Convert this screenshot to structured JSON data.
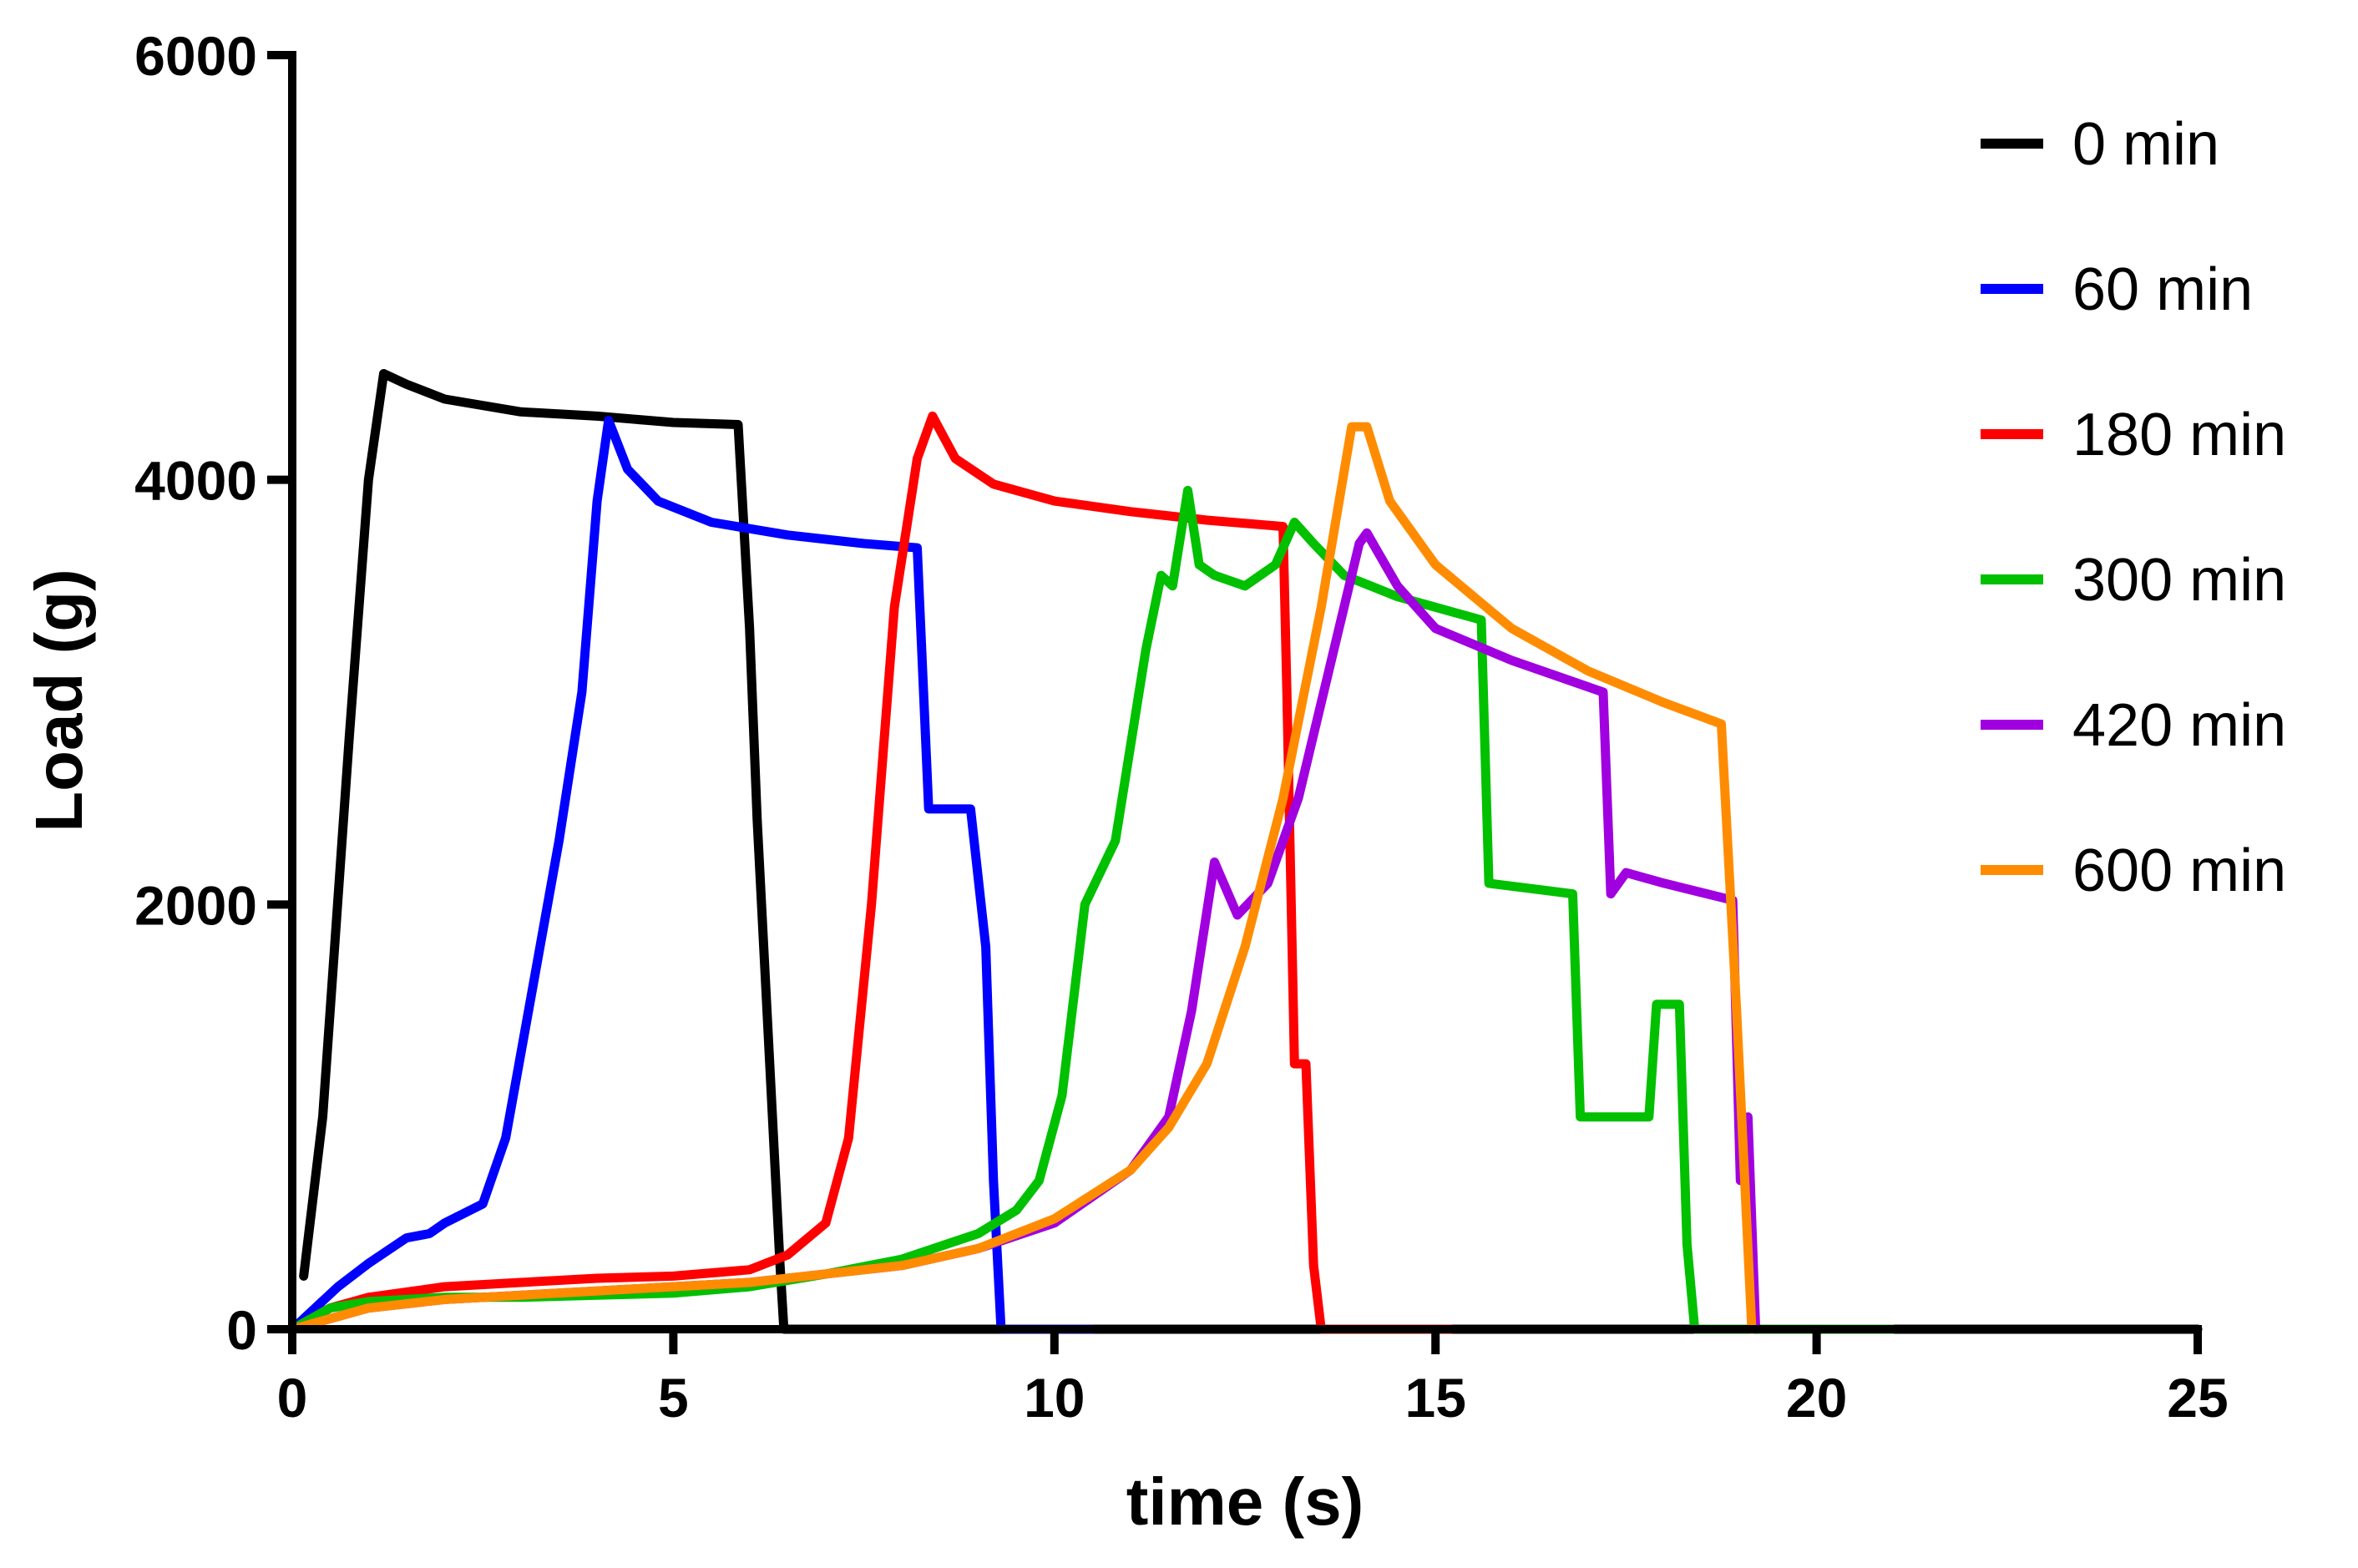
{
  "chart_data": {
    "type": "line",
    "title": "",
    "xlabel": "time (s)",
    "ylabel": "Load (g)",
    "xlim": [
      0,
      25
    ],
    "ylim": [
      0,
      6000
    ],
    "xticks": [
      0,
      5,
      10,
      15,
      20,
      25
    ],
    "xtick_labels": [
      "0",
      "5",
      "10",
      "15",
      "20",
      "25"
    ],
    "yticks": [
      0,
      2000,
      4000,
      6000
    ],
    "ytick_labels": [
      "0",
      "2000",
      "4000",
      "6000"
    ],
    "legend_position": "right",
    "series": [
      {
        "name": "0 min",
        "color": "#000000",
        "points": [
          [
            0.15,
            250
          ],
          [
            0.4,
            1000
          ],
          [
            0.75,
            2800
          ],
          [
            1.0,
            4000
          ],
          [
            1.2,
            4500
          ],
          [
            1.5,
            4450
          ],
          [
            2.0,
            4380
          ],
          [
            3.0,
            4320
          ],
          [
            4.0,
            4300
          ],
          [
            5.0,
            4270
          ],
          [
            5.85,
            4260
          ],
          [
            6.0,
            3300
          ],
          [
            6.1,
            2400
          ],
          [
            6.3,
            1000
          ],
          [
            6.4,
            300
          ],
          [
            6.45,
            0
          ],
          [
            10,
            0
          ],
          [
            20,
            0
          ],
          [
            25,
            0
          ]
        ]
      },
      {
        "name": "60 min",
        "color": "#0000ff",
        "points": [
          [
            0,
            0
          ],
          [
            0.3,
            100
          ],
          [
            0.6,
            200
          ],
          [
            1.0,
            310
          ],
          [
            1.5,
            430
          ],
          [
            1.8,
            450
          ],
          [
            2.0,
            500
          ],
          [
            2.5,
            590
          ],
          [
            2.8,
            900
          ],
          [
            3.1,
            1500
          ],
          [
            3.5,
            2300
          ],
          [
            3.8,
            3000
          ],
          [
            4.0,
            3900
          ],
          [
            4.15,
            4280
          ],
          [
            4.4,
            4050
          ],
          [
            4.8,
            3900
          ],
          [
            5.5,
            3800
          ],
          [
            6.5,
            3740
          ],
          [
            7.5,
            3700
          ],
          [
            8.2,
            3680
          ],
          [
            8.35,
            2450
          ],
          [
            8.9,
            2450
          ],
          [
            9.1,
            1800
          ],
          [
            9.2,
            700
          ],
          [
            9.3,
            0
          ],
          [
            10.5,
            0
          ]
        ]
      },
      {
        "name": "180 min",
        "color": "#ff0000",
        "points": [
          [
            0,
            0
          ],
          [
            0.5,
            100
          ],
          [
            1.0,
            150
          ],
          [
            2.0,
            200
          ],
          [
            3.0,
            220
          ],
          [
            4.0,
            240
          ],
          [
            5.0,
            250
          ],
          [
            6.0,
            280
          ],
          [
            6.5,
            350
          ],
          [
            7.0,
            500
          ],
          [
            7.3,
            900
          ],
          [
            7.6,
            2000
          ],
          [
            7.9,
            3400
          ],
          [
            8.2,
            4100
          ],
          [
            8.4,
            4300
          ],
          [
            8.7,
            4100
          ],
          [
            9.2,
            3980
          ],
          [
            10,
            3900
          ],
          [
            11,
            3850
          ],
          [
            12,
            3810
          ],
          [
            13.0,
            3780
          ],
          [
            13.05,
            3000
          ],
          [
            13.15,
            1250
          ],
          [
            13.3,
            1250
          ],
          [
            13.4,
            300
          ],
          [
            13.5,
            0
          ],
          [
            15.2,
            0
          ]
        ]
      },
      {
        "name": "300 min",
        "color": "#00c000",
        "points": [
          [
            0,
            0
          ],
          [
            0.5,
            100
          ],
          [
            1.0,
            130
          ],
          [
            2.0,
            150
          ],
          [
            3.0,
            150
          ],
          [
            4.0,
            160
          ],
          [
            5.0,
            170
          ],
          [
            6.0,
            200
          ],
          [
            7.0,
            260
          ],
          [
            8.0,
            330
          ],
          [
            9.0,
            450
          ],
          [
            9.5,
            560
          ],
          [
            9.8,
            700
          ],
          [
            10.1,
            1100
          ],
          [
            10.4,
            2000
          ],
          [
            10.8,
            2300
          ],
          [
            11.2,
            3200
          ],
          [
            11.4,
            3550
          ],
          [
            11.55,
            3500
          ],
          [
            11.75,
            3950
          ],
          [
            11.9,
            3600
          ],
          [
            12.1,
            3550
          ],
          [
            12.5,
            3500
          ],
          [
            12.9,
            3600
          ],
          [
            13.15,
            3800
          ],
          [
            13.4,
            3700
          ],
          [
            13.8,
            3550
          ],
          [
            14.5,
            3450
          ],
          [
            15.0,
            3400
          ],
          [
            15.6,
            3340
          ],
          [
            15.7,
            2100
          ],
          [
            16.8,
            2050
          ],
          [
            16.9,
            1000
          ],
          [
            17.8,
            1000
          ],
          [
            17.9,
            1530
          ],
          [
            18.2,
            1530
          ],
          [
            18.3,
            400
          ],
          [
            18.4,
            0
          ],
          [
            21.0,
            0
          ]
        ]
      },
      {
        "name": "420 min",
        "color": "#a000e0",
        "points": [
          [
            0,
            0
          ],
          [
            1.0,
            100
          ],
          [
            2.0,
            140
          ],
          [
            4.0,
            180
          ],
          [
            6.0,
            220
          ],
          [
            8.0,
            300
          ],
          [
            9.0,
            380
          ],
          [
            10.0,
            500
          ],
          [
            11.0,
            750
          ],
          [
            11.5,
            1000
          ],
          [
            11.8,
            1500
          ],
          [
            12.1,
            2200
          ],
          [
            12.4,
            1950
          ],
          [
            12.8,
            2100
          ],
          [
            13.2,
            2500
          ],
          [
            13.6,
            3100
          ],
          [
            14.0,
            3700
          ],
          [
            14.1,
            3750
          ],
          [
            14.5,
            3500
          ],
          [
            15.0,
            3300
          ],
          [
            16.0,
            3150
          ],
          [
            17.2,
            3000
          ],
          [
            17.3,
            2050
          ],
          [
            17.5,
            2150
          ],
          [
            18.0,
            2100
          ],
          [
            18.9,
            2020
          ],
          [
            19.0,
            700
          ],
          [
            19.1,
            1000
          ],
          [
            19.2,
            0
          ]
        ]
      },
      {
        "name": "600 min",
        "color": "#ff8c00",
        "points": [
          [
            0,
            0
          ],
          [
            1.0,
            100
          ],
          [
            2.0,
            140
          ],
          [
            4.0,
            180
          ],
          [
            6.0,
            220
          ],
          [
            8.0,
            300
          ],
          [
            9.0,
            380
          ],
          [
            10.0,
            520
          ],
          [
            11.0,
            750
          ],
          [
            11.5,
            950
          ],
          [
            12.0,
            1250
          ],
          [
            12.5,
            1800
          ],
          [
            13.0,
            2500
          ],
          [
            13.5,
            3400
          ],
          [
            13.9,
            4250
          ],
          [
            14.1,
            4250
          ],
          [
            14.4,
            3900
          ],
          [
            15,
            3600
          ],
          [
            16,
            3300
          ],
          [
            17,
            3100
          ],
          [
            18,
            2950
          ],
          [
            18.75,
            2850
          ],
          [
            18.95,
            1500
          ],
          [
            19.15,
            0
          ]
        ]
      }
    ]
  }
}
